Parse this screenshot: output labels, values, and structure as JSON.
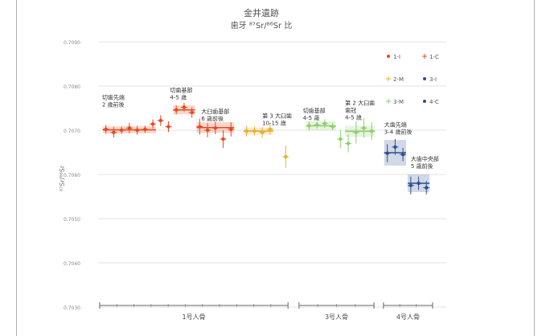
{
  "chart_data": {
    "type": "scatter",
    "title": "金井遺跡",
    "subtitle": "歯牙 ⁸⁷Sr/⁸⁶Sr 比",
    "ylabel": "⁸⁷Sr/⁸⁶Sr",
    "ylim": [
      0.703,
      0.709
    ],
    "yticks": [
      {
        "value": 0.709,
        "label": "0.7090"
      },
      {
        "value": 0.708,
        "label": "0.7080"
      },
      {
        "value": 0.707,
        "label": "0.7070"
      },
      {
        "value": 0.706,
        "label": "0.7060"
      },
      {
        "value": 0.705,
        "label": "0.7050"
      },
      {
        "value": 0.704,
        "label": "0.7040"
      },
      {
        "value": 0.703,
        "label": "0.7030"
      }
    ],
    "grid": true,
    "legend_position": "top-right",
    "legend": [
      {
        "key": "1-I",
        "label": "1-I",
        "color": "#e8481c",
        "symbol": "dot"
      },
      {
        "key": "1-C",
        "label": "1-C",
        "color": "#e8481c",
        "symbol": "plus"
      },
      {
        "key": "2-M",
        "label": "2-M",
        "color": "#e5b02a",
        "symbol": "plus"
      },
      {
        "key": "3-I",
        "label": "3-I",
        "color": "#2f4e8f",
        "symbol": "dot"
      },
      {
        "key": "3-M",
        "label": "3-M",
        "color": "#8fcf6e",
        "symbol": "plus"
      },
      {
        "key": "4-C",
        "label": "4-C",
        "color": "#2f4e8f",
        "symbol": "dot"
      }
    ],
    "series": [
      {
        "group": "1号人骨",
        "color": "#e8481c",
        "points": [
          {
            "x": 1,
            "y": 0.70702,
            "err": 0.0001
          },
          {
            "x": 2,
            "y": 0.70695,
            "err": 0.00012
          },
          {
            "x": 3,
            "y": 0.707,
            "err": 8e-05
          },
          {
            "x": 4,
            "y": 0.70705,
            "err": 0.00012
          },
          {
            "x": 5,
            "y": 0.707,
            "err": 0.0001
          },
          {
            "x": 6,
            "y": 0.70702,
            "err": 8e-05
          },
          {
            "x": 7,
            "y": 0.70714,
            "err": 0.0001
          },
          {
            "x": 8,
            "y": 0.70722,
            "err": 0.00012
          },
          {
            "x": 9,
            "y": 0.70708,
            "err": 0.00012
          },
          {
            "x": 10,
            "y": 0.70746,
            "err": 0.0001
          },
          {
            "x": 11,
            "y": 0.70752,
            "err": 0.0001
          },
          {
            "x": 12,
            "y": 0.7074,
            "err": 0.00012
          },
          {
            "x": 13,
            "y": 0.70708,
            "err": 0.00018
          },
          {
            "x": 14,
            "y": 0.707,
            "err": 0.00016
          },
          {
            "x": 15,
            "y": 0.70705,
            "err": 0.00014
          },
          {
            "x": 16,
            "y": 0.7068,
            "err": 0.0002
          },
          {
            "x": 17,
            "y": 0.70702,
            "err": 0.00016
          }
        ]
      },
      {
        "group": "1号人骨",
        "color": "#e5b02a",
        "points": [
          {
            "x": 19,
            "y": 0.70698,
            "err": 0.00012
          },
          {
            "x": 20,
            "y": 0.70698,
            "err": 0.0001
          },
          {
            "x": 21,
            "y": 0.70695,
            "err": 0.00012
          },
          {
            "x": 22,
            "y": 0.70702,
            "err": 0.00012
          },
          {
            "x": 24,
            "y": 0.7064,
            "err": 0.00025
          }
        ]
      },
      {
        "group": "3号人骨",
        "color": "#8fcf6e",
        "points": [
          {
            "x": 27,
            "y": 0.7071,
            "err": 0.0001
          },
          {
            "x": 28,
            "y": 0.70712,
            "err": 8e-05
          },
          {
            "x": 29,
            "y": 0.70715,
            "err": 0.0001
          },
          {
            "x": 30,
            "y": 0.70708,
            "err": 8e-05
          },
          {
            "x": 31,
            "y": 0.7068,
            "err": 0.0002
          },
          {
            "x": 32,
            "y": 0.7067,
            "err": 0.0002
          },
          {
            "x": 33,
            "y": 0.70695,
            "err": 0.00025
          },
          {
            "x": 34,
            "y": 0.70705,
            "err": 0.00022
          },
          {
            "x": 35,
            "y": 0.70698,
            "err": 0.0002
          }
        ]
      },
      {
        "group": "4号人骨",
        "color": "#2f4e8f",
        "points": [
          {
            "x": 37,
            "y": 0.70648,
            "err": 0.0002
          },
          {
            "x": 38,
            "y": 0.70662,
            "err": 0.00018
          },
          {
            "x": 39,
            "y": 0.70645,
            "err": 0.00015
          },
          {
            "x": 40,
            "y": 0.70575,
            "err": 0.0002
          },
          {
            "x": 41,
            "y": 0.7058,
            "err": 0.00015
          },
          {
            "x": 42,
            "y": 0.7057,
            "err": 0.00015
          }
        ]
      }
    ],
    "boxes": [
      {
        "x0": 0.6,
        "x1": 7.4,
        "y0": 0.70693,
        "y1": 0.70709,
        "color": "#e8481c"
      },
      {
        "x0": 9.6,
        "x1": 12.4,
        "y0": 0.70736,
        "y1": 0.70756,
        "color": "#e8481c"
      },
      {
        "x0": 12.6,
        "x1": 17.4,
        "y0": 0.70694,
        "y1": 0.70718,
        "color": "#e8481c"
      },
      {
        "x0": 18.6,
        "x1": 22.4,
        "y0": 0.7069,
        "y1": 0.70706,
        "color": "#e5b02a"
      },
      {
        "x0": 26.6,
        "x1": 30.4,
        "y0": 0.707,
        "y1": 0.7072,
        "color": "#8fcf6e"
      },
      {
        "x0": 31.6,
        "x1": 35.4,
        "y0": 0.70685,
        "y1": 0.7071,
        "color": "#8fcf6e"
      },
      {
        "x0": 36.6,
        "x1": 39.4,
        "y0": 0.7062,
        "y1": 0.70678,
        "color": "#2f4e8f"
      },
      {
        "x0": 39.6,
        "x1": 42.4,
        "y0": 0.7056,
        "y1": 0.706,
        "color": "#2f4e8f"
      }
    ],
    "annotations": [
      {
        "lines": [
          "切歯先端",
          "2 歳前後"
        ],
        "x": 0.5,
        "y": 0.7077
      },
      {
        "lines": [
          "切歯基部",
          "4-5 歳"
        ],
        "x": 9.2,
        "y": 0.70786
      },
      {
        "lines": [
          "大臼歯基部",
          "6 歳前後"
        ],
        "x": 13.2,
        "y": 0.70738
      },
      {
        "lines": [
          "第 3 大臼歯",
          "10-15 歳"
        ],
        "x": 21.0,
        "y": 0.70728
      },
      {
        "lines": [
          "切歯基部",
          "4-5 歳"
        ],
        "x": 26.2,
        "y": 0.7074
      },
      {
        "lines": [
          "第 2 大臼歯",
          "歯冠",
          "4-5 歳"
        ],
        "x": 31.6,
        "y": 0.70757
      },
      {
        "lines": [
          "大歯先端",
          "3-4 歳前後"
        ],
        "x": 36.6,
        "y": 0.70708
      },
      {
        "lines": [
          "大歯中央部",
          "5 歳前後"
        ],
        "x": 40.0,
        "y": 0.70631
      }
    ],
    "groups": [
      {
        "label": "1号人骨",
        "x0": 0,
        "x1": 24.5
      },
      {
        "label": "3号人骨",
        "x0": 25.5,
        "x1": 35.5
      },
      {
        "label": "4号人骨",
        "x0": 36.3,
        "x1": 43
      }
    ],
    "xlim": [
      0,
      43
    ]
  }
}
